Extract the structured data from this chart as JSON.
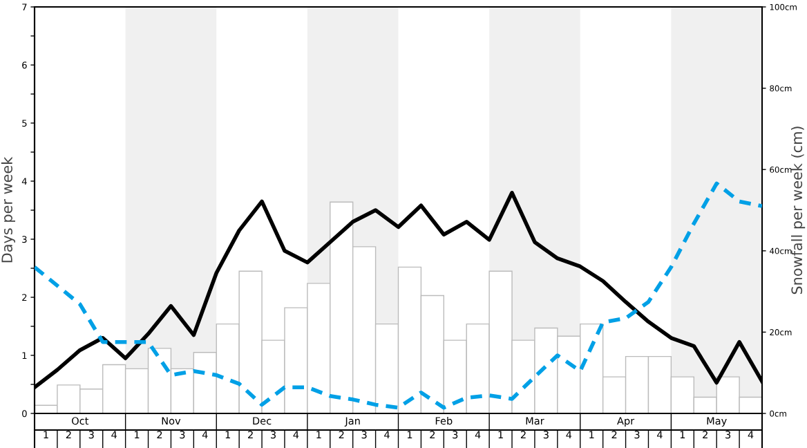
{
  "chart_data": [
    {
      "type": "bar",
      "ylabel": "Snowfall per week (cm)",
      "categories": [
        "1",
        "2",
        "3",
        "4",
        "1",
        "2",
        "3",
        "4",
        "1",
        "2",
        "3",
        "4",
        "1",
        "2",
        "3",
        "4",
        "1",
        "2",
        "3",
        "4",
        "1",
        "2",
        "3",
        "4",
        "1",
        "2",
        "3",
        "4",
        "1",
        "2",
        "3",
        "4"
      ],
      "annotations": [
        "Oct",
        "Nov",
        "Dec",
        "Jan",
        "Feb",
        "Mar",
        "Apr",
        "May"
      ],
      "ylim": [
        0,
        100
      ],
      "yticks": [
        {
          "value": 0,
          "label": "0cm"
        },
        {
          "value": 20,
          "label": "20cm"
        },
        {
          "value": 40,
          "label": "40cm"
        },
        {
          "value": 60,
          "label": "60cm"
        },
        {
          "value": 80,
          "label": "80cm"
        },
        {
          "value": 100,
          "label": "100cm"
        }
      ],
      "grid": false,
      "series": [
        {
          "color": "#ffffff",
          "values": [
            2,
            7,
            6,
            12,
            11,
            16,
            11,
            15,
            22,
            35,
            18,
            26,
            32,
            52,
            41,
            22,
            36,
            29,
            18,
            22,
            35,
            18,
            21,
            19,
            22,
            9,
            14,
            14,
            9,
            4,
            9,
            4
          ]
        }
      ]
    },
    {
      "type": "line",
      "ylabel": "Days per week",
      "tick_labels": "y",
      "categories": [
        null,
        null,
        null,
        null,
        null,
        null,
        null,
        null,
        null,
        null,
        null,
        null,
        null,
        null,
        null,
        null,
        null,
        null,
        null,
        null,
        null,
        null,
        null,
        null,
        null,
        null,
        null,
        null,
        null,
        null,
        null,
        null,
        null
      ],
      "ylim": [
        0,
        7
      ],
      "yticks": [
        0,
        {
          "value": 0.5,
          "label": null
        },
        1,
        {
          "value": 1.5,
          "label": null
        },
        2,
        {
          "value": 2.5,
          "label": null
        },
        3,
        {
          "value": 3.5,
          "label": null
        },
        4,
        {
          "value": 4.5,
          "label": null
        },
        5,
        {
          "value": 5.5,
          "label": null
        },
        6,
        {
          "value": 6.5,
          "label": null
        },
        7
      ],
      "grid": false,
      "series": [
        {
          "color": "#000000",
          "line_style": "solid",
          "values": [
            0.45,
            0.75,
            1.09,
            1.3,
            0.95,
            1.37,
            1.85,
            1.35,
            2.42,
            3.15,
            3.65,
            2.8,
            2.6,
            2.95,
            3.3,
            3.5,
            3.21,
            3.58,
            3.08,
            3.3,
            2.99,
            3.8,
            2.95,
            2.67,
            2.53,
            2.28,
            1.92,
            1.58,
            1.3,
            1.16,
            0.53,
            1.23,
            0.55
          ]
        },
        {
          "color": "#00a0e6",
          "line_style": "dashed",
          "values": [
            2.52,
            2.2,
            1.88,
            1.23,
            1.23,
            1.23,
            0.66,
            0.73,
            0.66,
            0.51,
            0.15,
            0.45,
            0.45,
            0.3,
            0.24,
            0.15,
            0.1,
            0.36,
            0.1,
            0.27,
            0.31,
            0.25,
            0.63,
            1.0,
            0.73,
            1.57,
            1.64,
            1.92,
            2.52,
            3.27,
            3.96,
            3.65,
            3.57
          ]
        }
      ]
    }
  ]
}
